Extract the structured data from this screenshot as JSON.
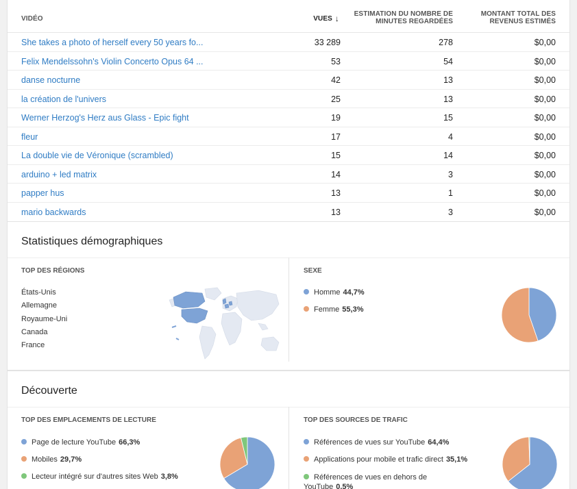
{
  "table": {
    "headers": {
      "video": "VIDÉO",
      "views": "VUES",
      "minutes_line1": "ESTIMATION DU NOMBRE DE",
      "minutes_line2": "MINUTES REGARDÉES",
      "revenue_line1": "MONTANT TOTAL DES",
      "revenue_line2": "REVENUS ESTIMÉS"
    },
    "rows": [
      {
        "title": "She takes a photo of herself every 50 years fo...",
        "views": "33 289",
        "minutes": "278",
        "revenue": "$0,00"
      },
      {
        "title": "Felix Mendelssohn's Violin Concerto Opus 64 ...",
        "views": "53",
        "minutes": "54",
        "revenue": "$0,00"
      },
      {
        "title": "danse nocturne",
        "views": "42",
        "minutes": "13",
        "revenue": "$0,00"
      },
      {
        "title": "la création de l'univers",
        "views": "25",
        "minutes": "13",
        "revenue": "$0,00"
      },
      {
        "title": "Werner Herzog's Herz aus Glass - Epic fight",
        "views": "19",
        "minutes": "15",
        "revenue": "$0,00"
      },
      {
        "title": "fleur",
        "views": "17",
        "minutes": "4",
        "revenue": "$0,00"
      },
      {
        "title": "La double vie de Véronique (scrambled)",
        "views": "15",
        "minutes": "14",
        "revenue": "$0,00"
      },
      {
        "title": "arduino + led matrix",
        "views": "14",
        "minutes": "3",
        "revenue": "$0,00"
      },
      {
        "title": "papper hus",
        "views": "13",
        "minutes": "1",
        "revenue": "$0,00"
      },
      {
        "title": "mario backwards",
        "views": "13",
        "minutes": "3",
        "revenue": "$0,00"
      }
    ]
  },
  "demographics": {
    "title": "Statistiques démographiques",
    "regions_title": "TOP DES RÉGIONS",
    "regions": [
      "États-Unis",
      "Allemagne",
      "Royaume-Uni",
      "Canada",
      "France"
    ],
    "gender_title": "SEXE",
    "gender": [
      {
        "label": "Homme",
        "value": "44,7%",
        "pct": 44.7,
        "color": "#7ea3d6"
      },
      {
        "label": "Femme",
        "value": "55,3%",
        "pct": 55.3,
        "color": "#e9a276"
      }
    ]
  },
  "discovery": {
    "title": "Découverte",
    "playback_title": "TOP DES EMPLACEMENTS DE LECTURE",
    "playback": [
      {
        "label": "Page de lecture YouTube",
        "value": "66,3%",
        "pct": 66.3,
        "color": "#7ea3d6"
      },
      {
        "label": "Mobiles",
        "value": "29,7%",
        "pct": 29.7,
        "color": "#e9a276"
      },
      {
        "label": "Lecteur intégré sur d'autres sites Web",
        "value": "3,8%",
        "pct": 3.8,
        "color": "#7fc77b"
      }
    ],
    "traffic_title": "TOP DES SOURCES DE TRAFIC",
    "traffic": [
      {
        "label": "Références de vues sur YouTube",
        "value": "64,4%",
        "pct": 64.4,
        "color": "#7ea3d6"
      },
      {
        "label": "Applications pour mobile et trafic direct",
        "value": "35,1%",
        "pct": 35.1,
        "color": "#e9a276"
      },
      {
        "label_line1": "Références de vues en dehors de",
        "label_line2": "YouTube",
        "value": "0,5%",
        "pct": 0.5,
        "color": "#7fc77b"
      }
    ]
  },
  "colors": {
    "link": "#2f7cc4",
    "map_highlight": "#7ea3d6",
    "map_land": "#e4e9f2"
  }
}
